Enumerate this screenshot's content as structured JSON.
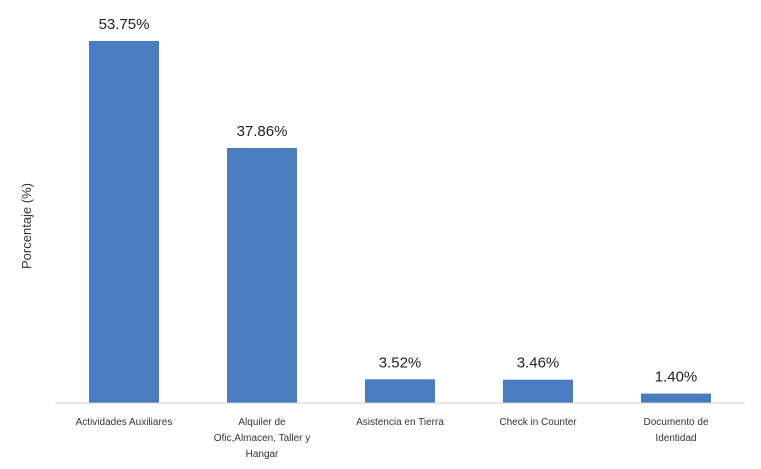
{
  "chart_data": {
    "type": "bar",
    "title": "",
    "xlabel": "",
    "ylabel": "Porcentaje (%)",
    "categories": [
      [
        "Actividades Auxiliares"
      ],
      [
        "Alquiler de",
        "Ofic,Almacen, Taller y",
        "Hangar"
      ],
      [
        "Asistencia en Tierra"
      ],
      [
        "Check in Counter"
      ],
      [
        "Documento de",
        "Identidad"
      ]
    ],
    "values": [
      53.75,
      37.86,
      3.52,
      3.46,
      1.4
    ],
    "data_labels": [
      "53.75%",
      "37.86%",
      "3.52%",
      "3.46%",
      "1.40%"
    ],
    "ylim": [
      0,
      53.75
    ],
    "grid": false,
    "legend": "none",
    "bar_color": "#4a7cc0",
    "axis_color": "#d0d0d0"
  }
}
